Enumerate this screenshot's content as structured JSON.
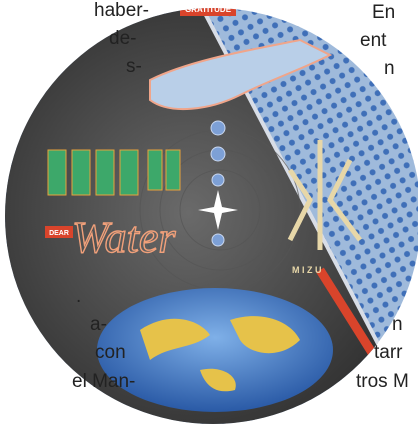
{
  "text_fragments": {
    "left": [
      "haber-",
      "de-",
      "s-",
      ".",
      "a-",
      "con",
      "el Man-"
    ],
    "right": [
      "En",
      "ent",
      "n",
      "n",
      "tarr",
      "tros M"
    ]
  },
  "illustration": {
    "badge": "GRATITUDE",
    "dear": "DEAR",
    "water": "Water",
    "mizu": "M I Z U"
  }
}
